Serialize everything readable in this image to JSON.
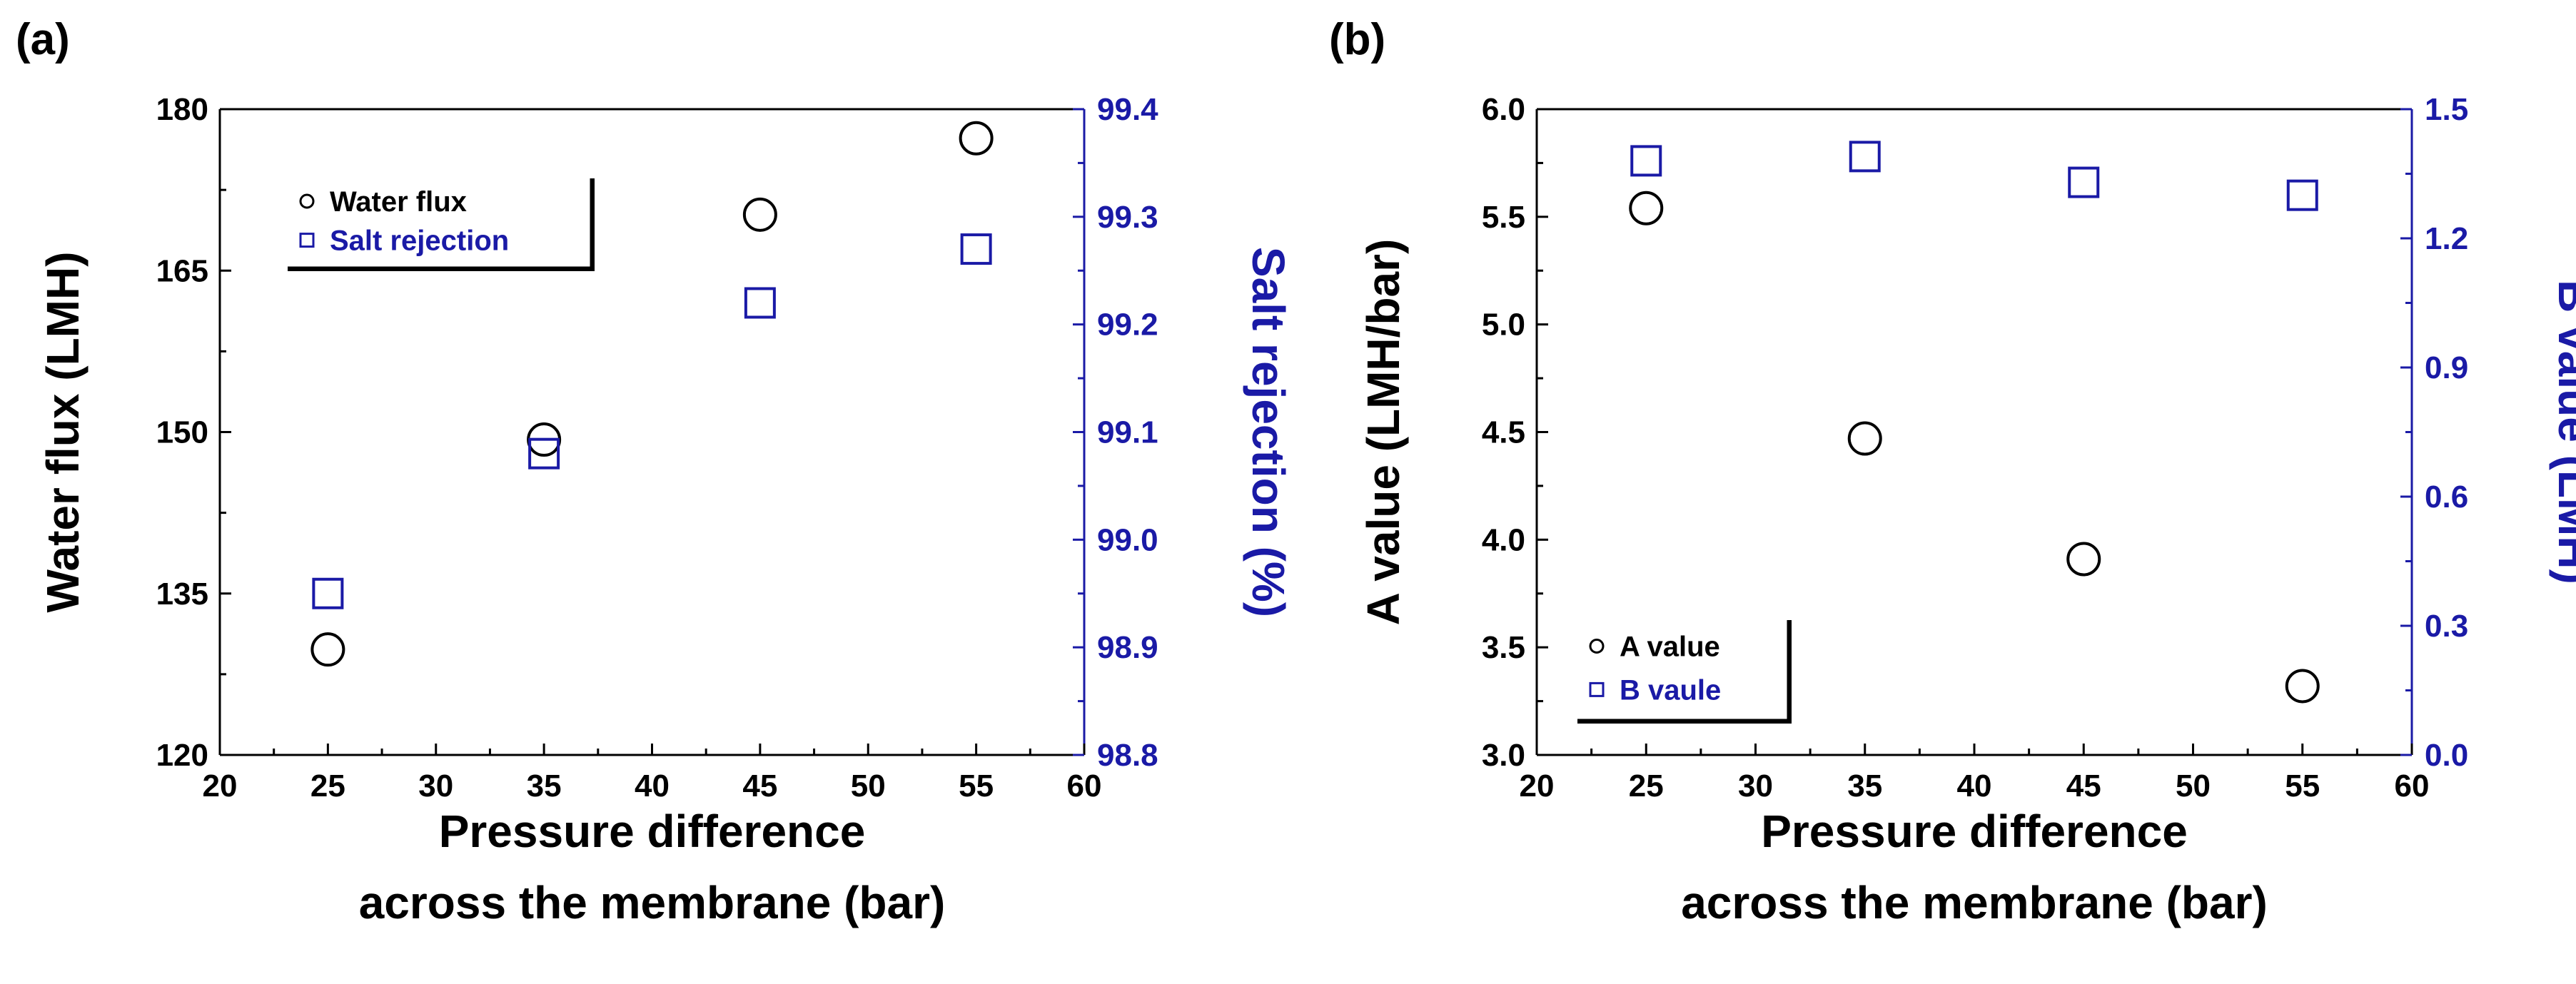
{
  "colors": {
    "left_axis": "#000000",
    "right_axis": "#1a1aa6",
    "frame": "#000000"
  },
  "chart_data": [
    {
      "type": "scatter",
      "panel": "(a)",
      "x": [
        25,
        35,
        45,
        55
      ],
      "xlim": [
        20,
        60
      ],
      "xticks": [
        "20",
        "25",
        "30",
        "35",
        "40",
        "45",
        "50",
        "55",
        "60"
      ],
      "xlabel_lines": [
        "Pressure difference",
        "across the membrane (bar)"
      ],
      "ylim_left": [
        120,
        180
      ],
      "yticks_left": [
        "120",
        "135",
        "150",
        "165",
        "180"
      ],
      "ylabel_left": "Water flux (LMH)",
      "ylim_right": [
        98.8,
        99.4
      ],
      "yticks_right": [
        "98.8",
        "98.9",
        "99.0",
        "99.1",
        "99.2",
        "99.3",
        "99.4"
      ],
      "ylabel_right": "Salt rejection (%)",
      "series": [
        {
          "name": "Water flux",
          "axis": "left",
          "marker": "circle",
          "values": [
            129.8,
            149.3,
            170.2,
            177.3
          ]
        },
        {
          "name": "Salt rejection",
          "axis": "right",
          "marker": "square",
          "values": [
            98.95,
            99.08,
            99.22,
            99.27
          ]
        }
      ],
      "legend_position": "top-left"
    },
    {
      "type": "scatter",
      "panel": "(b)",
      "x": [
        25,
        35,
        45,
        55
      ],
      "xlim": [
        20,
        60
      ],
      "xticks": [
        "20",
        "25",
        "30",
        "35",
        "40",
        "45",
        "50",
        "55",
        "60"
      ],
      "xlabel_lines": [
        "Pressure difference",
        "across the membrane (bar)"
      ],
      "ylim_left": [
        3.0,
        6.0
      ],
      "yticks_left": [
        "3.0",
        "3.5",
        "4.0",
        "4.5",
        "5.0",
        "5.5",
        "6.0"
      ],
      "ylabel_left": "A value (LMH/bar)",
      "ylim_right": [
        0.0,
        1.5
      ],
      "yticks_right": [
        "0.0",
        "0.3",
        "0.6",
        "0.9",
        "1.2",
        "1.5"
      ],
      "ylabel_right": "B value (LMH)",
      "series": [
        {
          "name": "A value",
          "axis": "left",
          "marker": "circle",
          "values": [
            5.54,
            4.47,
            3.91,
            3.32
          ]
        },
        {
          "name": "B vaule",
          "axis": "right",
          "marker": "square",
          "values": [
            1.38,
            1.39,
            1.33,
            1.3
          ]
        }
      ],
      "legend_position": "bottom-left"
    }
  ]
}
